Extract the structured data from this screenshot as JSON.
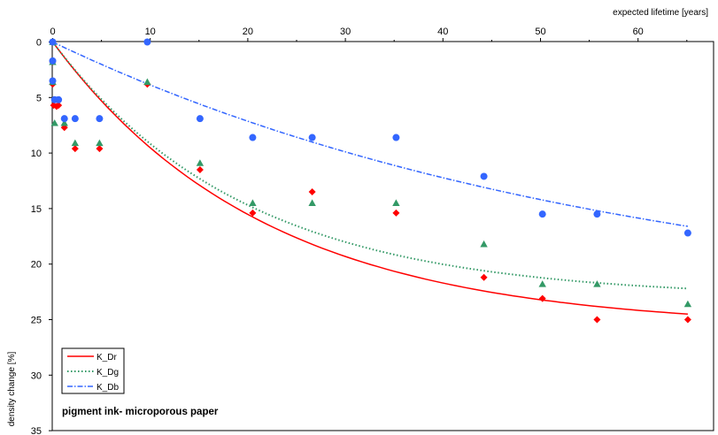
{
  "chart_data": {
    "type": "scatter",
    "x_axis": {
      "label": "expected lifetime [years]",
      "position": "top",
      "range": [
        0,
        68
      ],
      "ticks": [
        0,
        10,
        20,
        30,
        40,
        50,
        60
      ]
    },
    "y_axis": {
      "label": "density change [%]",
      "range": [
        0,
        35
      ],
      "inverted": true,
      "ticks": [
        0,
        5,
        10,
        15,
        20,
        25,
        30,
        35
      ]
    },
    "grid": false,
    "annotation": "pigment ink- microporous paper",
    "legend": {
      "placement": "bottom-left",
      "entries": [
        {
          "label": "K_Dr",
          "color": "#ff0000",
          "style": "solid"
        },
        {
          "label": "K_Dg",
          "color": "#339966",
          "style": "dotted"
        },
        {
          "label": "K_Db",
          "color": "#3366ff",
          "style": "dash-dot"
        }
      ]
    },
    "series": [
      {
        "marker": "diamond",
        "color": "#ff0000",
        "points": [
          [
            0,
            0
          ],
          [
            0,
            1.8
          ],
          [
            0,
            3.8
          ],
          [
            0.1,
            5.7
          ],
          [
            0.4,
            5.8
          ],
          [
            0.6,
            5.7
          ],
          [
            1.2,
            7.7
          ],
          [
            2.3,
            9.6
          ],
          [
            4.8,
            9.6
          ],
          [
            9.7,
            3.8
          ],
          [
            15.1,
            11.5
          ],
          [
            20.5,
            15.4
          ],
          [
            26.6,
            13.5
          ],
          [
            35.2,
            15.4
          ],
          [
            44.2,
            21.2
          ],
          [
            50.2,
            23.1
          ],
          [
            55.8,
            25
          ],
          [
            65.1,
            25
          ]
        ]
      },
      {
        "marker": "triangle",
        "color": "#339966",
        "points": [
          [
            0,
            0
          ],
          [
            0,
            1.8
          ],
          [
            0,
            3.6
          ],
          [
            0.2,
            7.3
          ],
          [
            1.2,
            7.3
          ],
          [
            2.3,
            9.1
          ],
          [
            4.8,
            9.1
          ],
          [
            9.7,
            3.6
          ],
          [
            15.1,
            10.9
          ],
          [
            20.5,
            14.5
          ],
          [
            26.6,
            14.5
          ],
          [
            35.2,
            14.5
          ],
          [
            44.2,
            18.2
          ],
          [
            50.2,
            21.8
          ],
          [
            55.8,
            21.8
          ],
          [
            65.1,
            23.6
          ]
        ]
      },
      {
        "marker": "circle",
        "color": "#3366ff",
        "points": [
          [
            0,
            0
          ],
          [
            0,
            1.7
          ],
          [
            0,
            3.5
          ],
          [
            0.2,
            5.2
          ],
          [
            0.6,
            5.2
          ],
          [
            1.2,
            6.9
          ],
          [
            2.3,
            6.9
          ],
          [
            4.8,
            6.9
          ],
          [
            9.7,
            0
          ],
          [
            15.1,
            6.9
          ],
          [
            20.5,
            8.6
          ],
          [
            26.6,
            8.6
          ],
          [
            35.2,
            8.6
          ],
          [
            44.2,
            12.1
          ],
          [
            50.2,
            15.5
          ],
          [
            55.8,
            15.5
          ],
          [
            65.1,
            17.2
          ]
        ]
      }
    ],
    "fit_lines": [
      {
        "name": "K_Dr",
        "color": "#ff0000",
        "style": "solid",
        "x_end": 65.1,
        "y_end": 24.5
      },
      {
        "name": "K_Dg",
        "color": "#339966",
        "style": "dotted",
        "x_end": 65.1,
        "y_end": 22.2
      },
      {
        "name": "K_Db",
        "color": "#3366ff",
        "style": "dash-dot",
        "x_end": 65.1,
        "y_end": 16.6
      }
    ]
  }
}
